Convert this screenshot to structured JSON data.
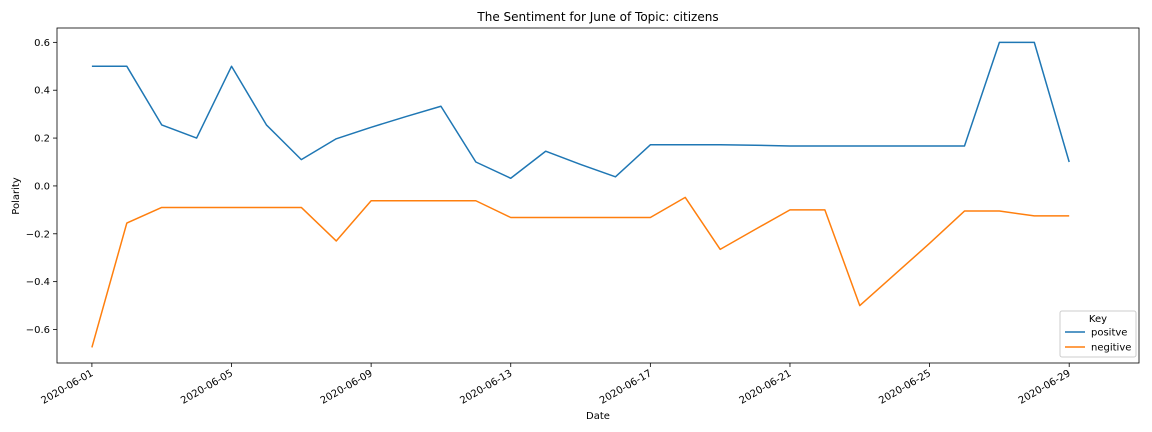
{
  "chart_data": {
    "type": "line",
    "title": "The Sentiment for June of Topic: citizens",
    "xlabel": "Date",
    "ylabel": "Polarity",
    "ylim": [
      -0.74,
      0.66
    ],
    "yticks": [
      -0.6,
      -0.4,
      -0.2,
      0.0,
      0.2,
      0.4,
      0.6
    ],
    "ytick_labels": [
      "−0.6",
      "−0.4",
      "−0.2",
      "0.0",
      "0.2",
      "0.4",
      "0.6"
    ],
    "xlim": [
      "2020-05-31",
      "2020-07-01"
    ],
    "xticks": [
      "2020-06-01",
      "2020-06-05",
      "2020-06-09",
      "2020-06-13",
      "2020-06-17",
      "2020-06-21",
      "2020-06-25",
      "2020-06-29"
    ],
    "grid": false,
    "legend": {
      "title": "Key",
      "position": "lower-right"
    },
    "x": [
      "2020-06-01",
      "2020-06-02",
      "2020-06-03",
      "2020-06-04",
      "2020-06-05",
      "2020-06-06",
      "2020-06-07",
      "2020-06-08",
      "2020-06-09",
      "2020-06-10",
      "2020-06-11",
      "2020-06-12",
      "2020-06-13",
      "2020-06-14",
      "2020-06-15",
      "2020-06-16",
      "2020-06-17",
      "2020-06-18",
      "2020-06-19",
      "2020-06-20",
      "2020-06-21",
      "2020-06-22",
      "2020-06-23",
      "2020-06-24",
      "2020-06-25",
      "2020-06-26",
      "2020-06-27",
      "2020-06-28",
      "2020-06-29"
    ],
    "series": [
      {
        "name": "positve",
        "color": "#1f77b4",
        "values": [
          0.5,
          0.5,
          0.255,
          0.2,
          0.5,
          0.255,
          0.11,
          0.197,
          0.245,
          0.29,
          0.333,
          0.1,
          0.032,
          0.145,
          0.09,
          0.038,
          0.172,
          0.172,
          0.172,
          0.17,
          0.167,
          0.167,
          0.167,
          0.167,
          0.167,
          0.167,
          0.6,
          0.6,
          0.1
        ]
      },
      {
        "name": "negitive",
        "color": "#ff7f0e",
        "values": [
          -0.675,
          -0.155,
          -0.09,
          -0.09,
          -0.09,
          -0.09,
          -0.09,
          -0.23,
          -0.062,
          -0.062,
          -0.062,
          -0.062,
          -0.132,
          -0.132,
          -0.132,
          -0.132,
          -0.132,
          -0.048,
          -0.265,
          -0.182,
          -0.1,
          -0.1,
          -0.5,
          -0.37,
          -0.24,
          -0.105,
          -0.105,
          -0.125,
          -0.125
        ]
      }
    ]
  }
}
